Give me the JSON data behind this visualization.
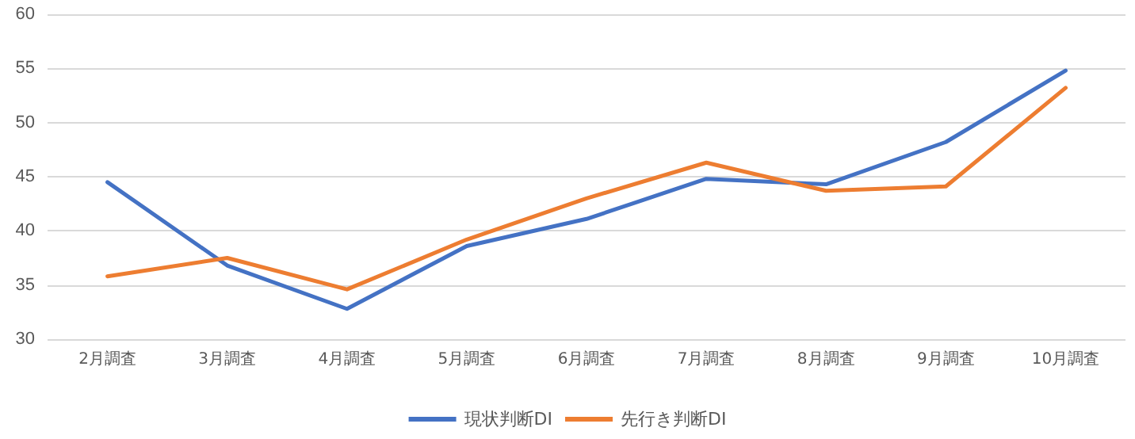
{
  "chart_data": {
    "type": "line",
    "categories": [
      "2月調査",
      "3月調査",
      "4月調査",
      "5月調査",
      "6月調査",
      "7月調査",
      "8月調査",
      "9月調査",
      "10月調査"
    ],
    "series": [
      {
        "name": "現状判断DI",
        "color": "#4472c4",
        "values": [
          44.5,
          36.8,
          32.8,
          38.6,
          41.1,
          44.8,
          44.3,
          48.2,
          54.8
        ]
      },
      {
        "name": "先行き判断DI",
        "color": "#ed7d31",
        "values": [
          35.8,
          37.5,
          34.6,
          39.2,
          43.0,
          46.3,
          43.7,
          44.1,
          53.2
        ]
      }
    ],
    "ylim": [
      30,
      60
    ],
    "yticks": [
      30,
      35,
      40,
      45,
      50,
      55,
      60
    ],
    "grid": "y",
    "legend": "bottom",
    "marker": "none",
    "line_style": "solid"
  }
}
